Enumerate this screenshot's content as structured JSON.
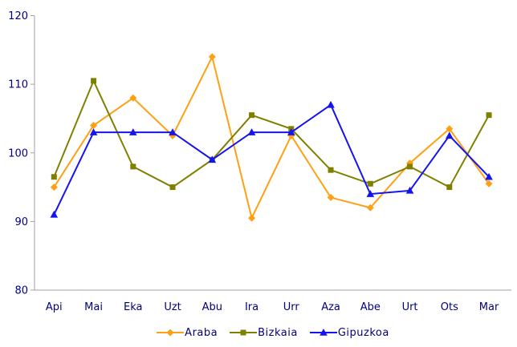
{
  "chart_data": {
    "type": "line",
    "title": "",
    "xlabel": "",
    "ylabel": "",
    "categories": [
      "Api",
      "Mai",
      "Eka",
      "Uzt",
      "Abu",
      "Ira",
      "Urr",
      "Aza",
      "Abe",
      "Urt",
      "Ots",
      "Mar"
    ],
    "series": [
      {
        "name": "Araba",
        "color": "#FFA014",
        "marker": "diamond",
        "values": [
          95,
          104,
          108,
          102.5,
          114,
          90.5,
          102.5,
          93.5,
          92,
          98.5,
          103.5,
          95.5
        ]
      },
      {
        "name": "Bizkaia",
        "color": "#808000",
        "marker": "square",
        "values": [
          96.5,
          110.5,
          98,
          95,
          99,
          105.5,
          103.5,
          97.5,
          95.5,
          98,
          95,
          105.5
        ]
      },
      {
        "name": "Gipuzkoa",
        "color": "#1414F0",
        "marker": "triangle",
        "values": [
          91,
          103,
          103,
          103,
          99,
          103,
          103,
          107,
          94,
          94.5,
          102.5,
          96.5
        ]
      }
    ],
    "ylim": [
      80,
      120
    ],
    "yticks": [
      80,
      90,
      100,
      110,
      120
    ],
    "grid": false,
    "legend_position": "bottom",
    "axis_color": "#A0A0A0",
    "label_color": "#000080",
    "background_color": "#FFFFFF"
  }
}
